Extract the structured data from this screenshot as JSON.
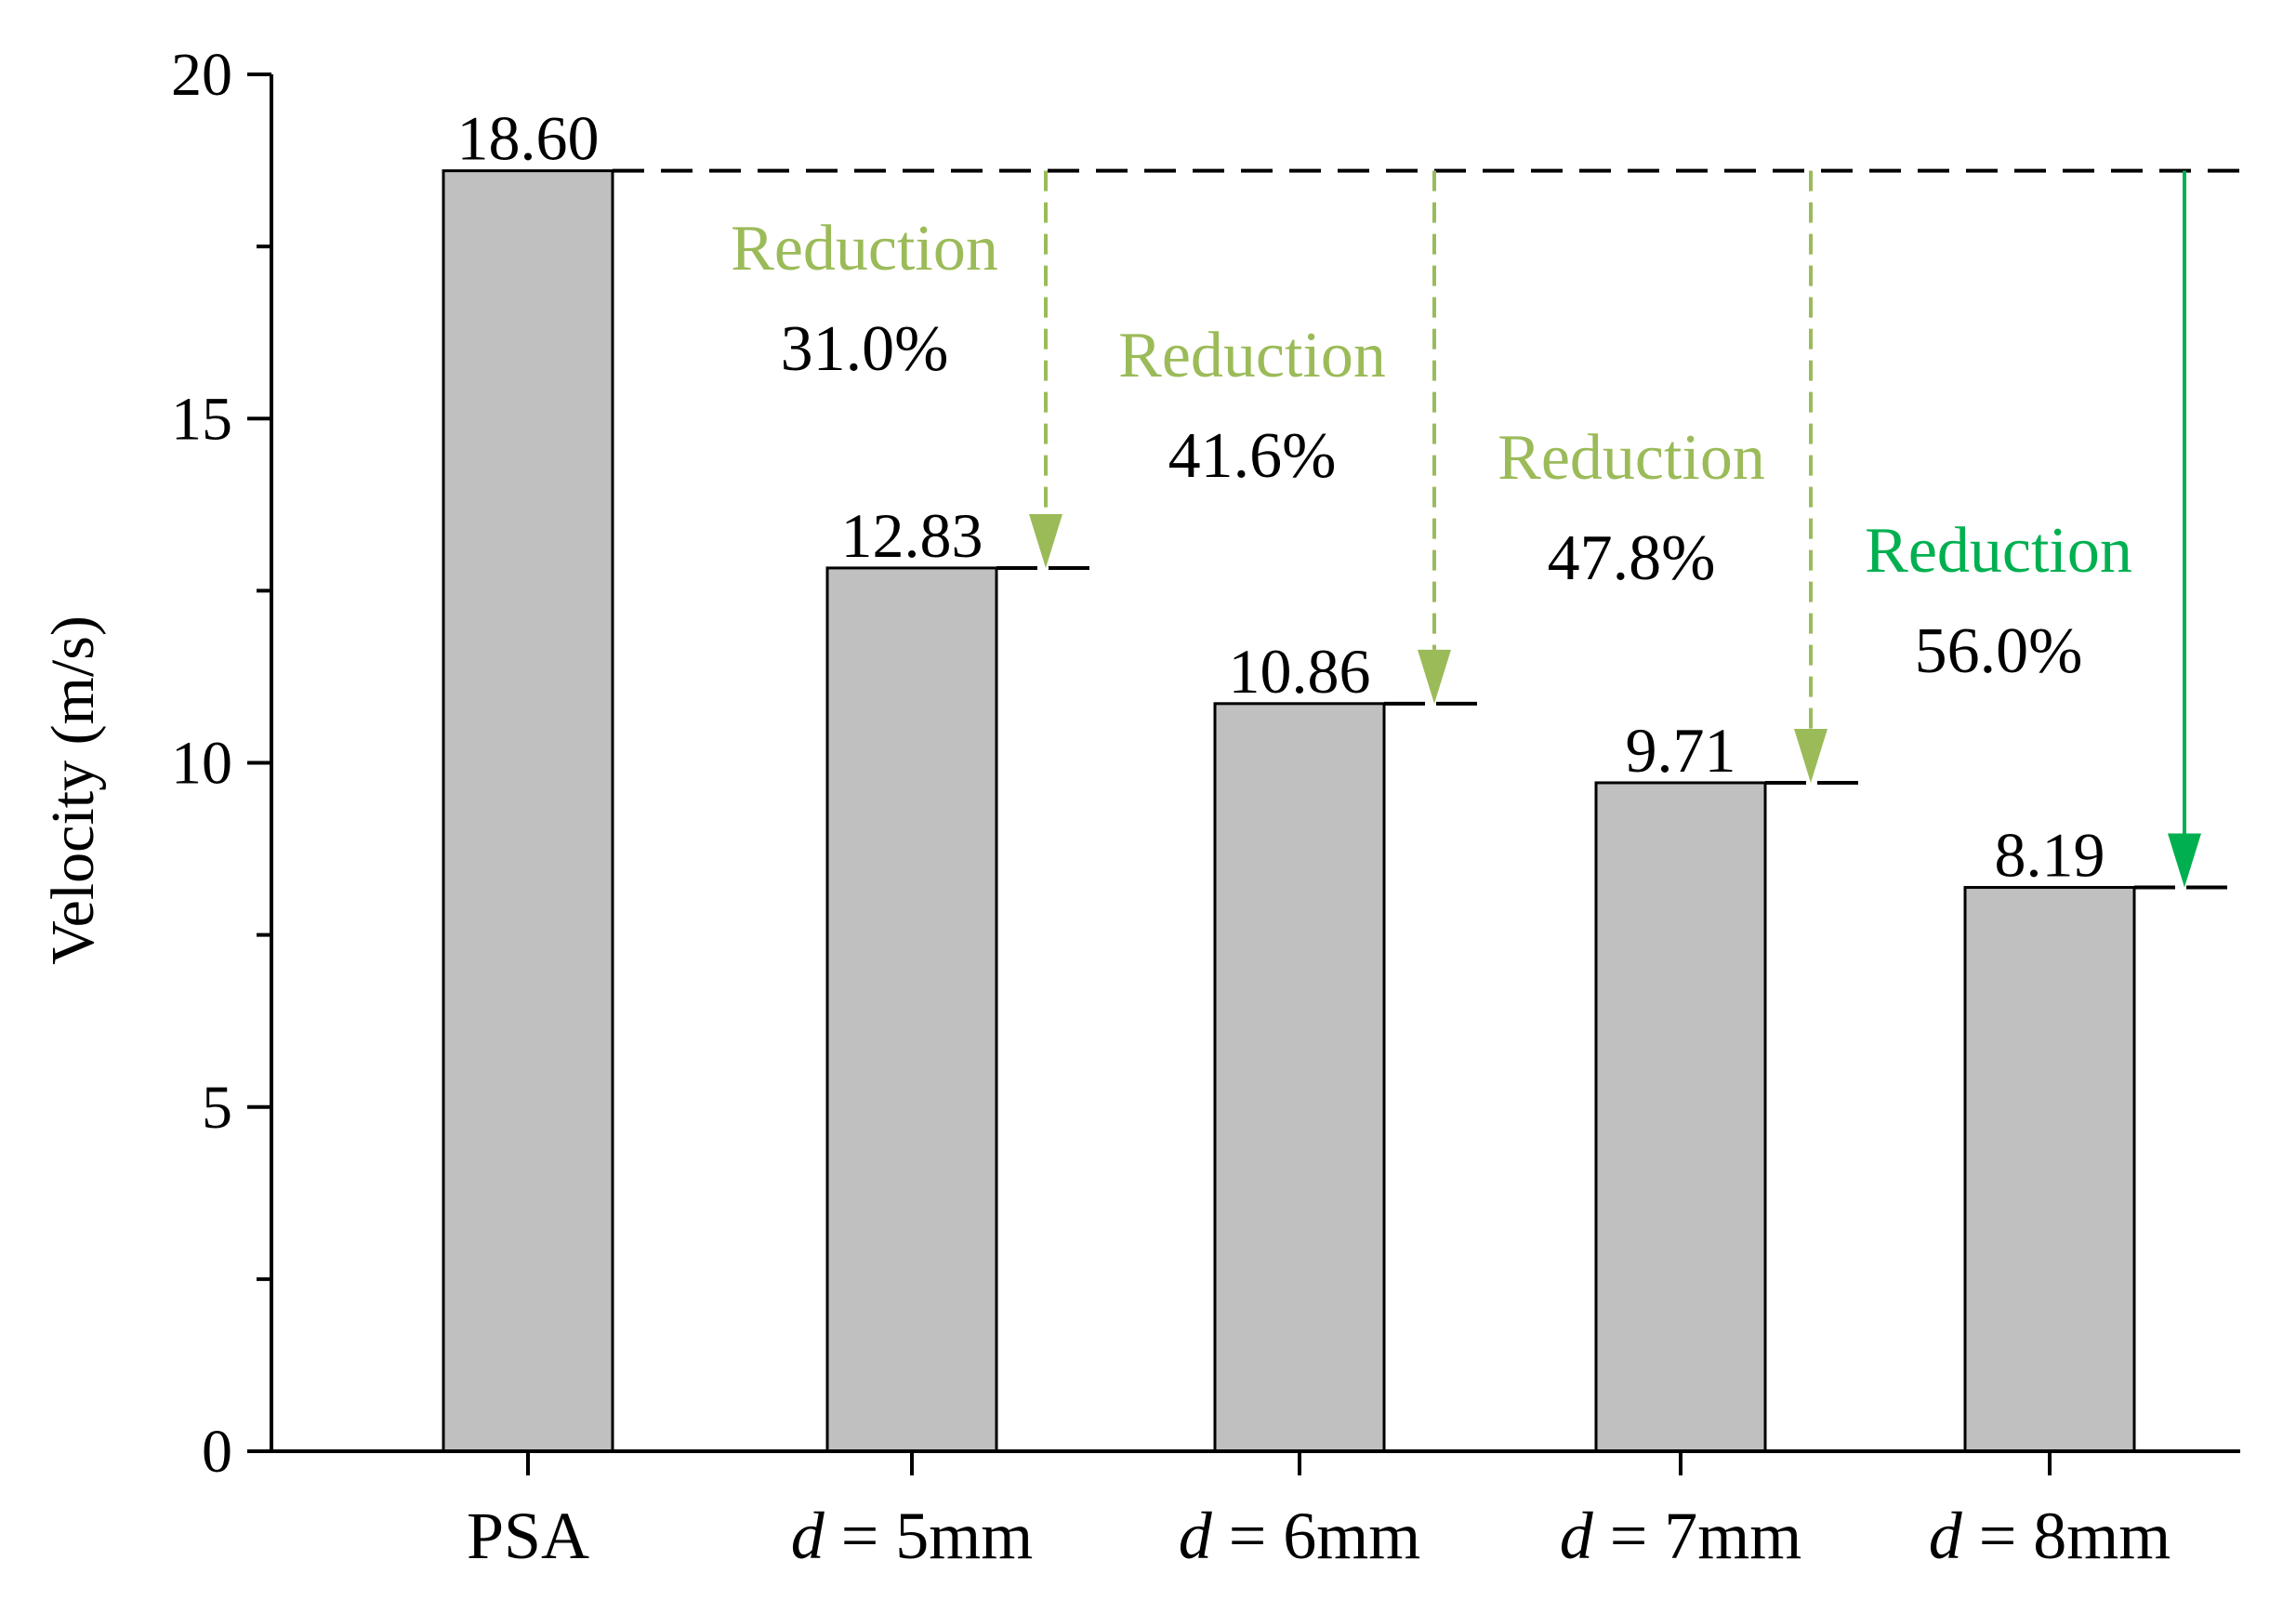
{
  "chart_data": {
    "type": "bar",
    "categories": [
      {
        "prefix": "",
        "suffix": "PSA"
      },
      {
        "prefix": "d",
        "suffix": " = 5mm"
      },
      {
        "prefix": "d",
        "suffix": " = 6mm"
      },
      {
        "prefix": "d",
        "suffix": " = 7mm"
      },
      {
        "prefix": "d",
        "suffix": " = 8mm"
      }
    ],
    "values": [
      18.6,
      12.83,
      10.86,
      9.71,
      8.19
    ],
    "value_labels": [
      "18.60",
      "12.83",
      "10.86",
      "9.71",
      "8.19"
    ],
    "ylabel": "Velocity (m/s)",
    "ylim": [
      0,
      20
    ],
    "yticks": [
      0,
      5,
      10,
      15,
      20
    ],
    "reference_value": 18.6,
    "annotations": [
      {
        "label": "Reduction",
        "percent": "31.0%",
        "target_index": 1,
        "color": "#9BBB59",
        "style": "dashed"
      },
      {
        "label": "Reduction",
        "percent": "41.6%",
        "target_index": 2,
        "color": "#9BBB59",
        "style": "dashed"
      },
      {
        "label": "Reduction",
        "percent": "47.8%",
        "target_index": 3,
        "color": "#9BBB59",
        "style": "dashed"
      },
      {
        "label": "Reduction",
        "percent": "56.0%",
        "target_index": 4,
        "color": "#00B050",
        "style": "solid"
      }
    ],
    "bar_color": "#C0C0C0",
    "grid": false
  }
}
